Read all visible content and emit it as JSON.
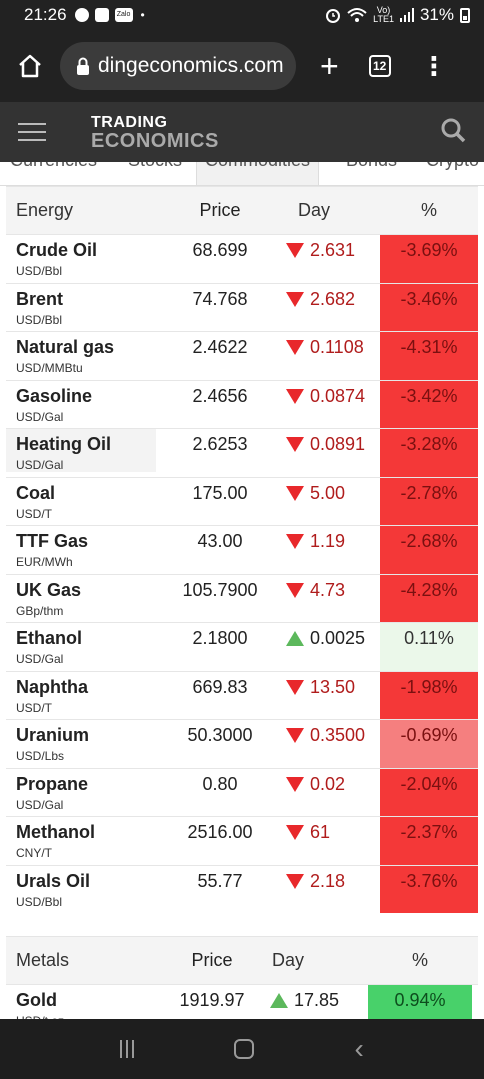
{
  "status_bar": {
    "time": "21:26",
    "app_icons": [
      "messenger-icon",
      "image-icon",
      "zalo-icon"
    ],
    "zalo_label": "Zalo",
    "dot": "•",
    "alarm_icon": "alarm-icon",
    "wifi_icon": "wifi-icon",
    "network_label_top": "Vo)",
    "network_label_bottom": "LTE1",
    "signal_icon": "signal-icon",
    "battery": "31%"
  },
  "browser": {
    "url": "dingeconomics.com",
    "tabs_count": "12",
    "plus_label": "+",
    "menu_label": "⋮"
  },
  "site": {
    "logo_line1": "TRADING",
    "logo_line2": "ECONOMICS"
  },
  "category_tabs": [
    {
      "label": "Currencies",
      "active": false
    },
    {
      "label": "Stocks",
      "active": false
    },
    {
      "label": "Commodities",
      "active": true
    },
    {
      "label": "Bonds",
      "active": false
    },
    {
      "label": "Crypto",
      "active": false
    }
  ],
  "energy_table": {
    "headers": {
      "name": "Energy",
      "price": "Price",
      "day": "Day",
      "pct": "%"
    },
    "rows": [
      {
        "name": "Crude Oil",
        "unit": "USD/Bbl",
        "price": "68.699",
        "dir": "down",
        "change": "2.631",
        "pct": "-3.69%",
        "pct_style": "red"
      },
      {
        "name": "Brent",
        "unit": "USD/Bbl",
        "price": "74.768",
        "dir": "down",
        "change": "2.682",
        "pct": "-3.46%",
        "pct_style": "red"
      },
      {
        "name": "Natural gas",
        "unit": "USD/MMBtu",
        "price": "2.4622",
        "dir": "down",
        "change": "0.1108",
        "pct": "-4.31%",
        "pct_style": "red"
      },
      {
        "name": "Gasoline",
        "unit": "USD/Gal",
        "price": "2.4656",
        "dir": "down",
        "change": "0.0874",
        "pct": "-3.42%",
        "pct_style": "red"
      },
      {
        "name": "Heating Oil",
        "unit": "USD/Gal",
        "price": "2.6253",
        "dir": "down",
        "change": "0.0891",
        "pct": "-3.28%",
        "pct_style": "red"
      },
      {
        "name": "Coal",
        "unit": "USD/T",
        "price": "175.00",
        "dir": "down",
        "change": "5.00",
        "pct": "-2.78%",
        "pct_style": "red"
      },
      {
        "name": "TTF Gas",
        "unit": "EUR/MWh",
        "price": "43.00",
        "dir": "down",
        "change": "1.19",
        "pct": "-2.68%",
        "pct_style": "red"
      },
      {
        "name": "UK Gas",
        "unit": "GBp/thm",
        "price": "105.7900",
        "dir": "down",
        "change": "4.73",
        "pct": "-4.28%",
        "pct_style": "red"
      },
      {
        "name": "Ethanol",
        "unit": "USD/Gal",
        "price": "2.1800",
        "dir": "up",
        "change": "0.0025",
        "pct": "0.11%",
        "pct_style": "lightgreen"
      },
      {
        "name": "Naphtha",
        "unit": "USD/T",
        "price": "669.83",
        "dir": "down",
        "change": "13.50",
        "pct": "-1.98%",
        "pct_style": "red"
      },
      {
        "name": "Uranium",
        "unit": "USD/Lbs",
        "price": "50.3000",
        "dir": "down",
        "change": "0.3500",
        "pct": "-0.69%",
        "pct_style": "lightred"
      },
      {
        "name": "Propane",
        "unit": "USD/Gal",
        "price": "0.80",
        "dir": "down",
        "change": "0.02",
        "pct": "-2.04%",
        "pct_style": "red"
      },
      {
        "name": "Methanol",
        "unit": "CNY/T",
        "price": "2516.00",
        "dir": "down",
        "change": "61",
        "pct": "-2.37%",
        "pct_style": "red"
      },
      {
        "name": "Urals Oil",
        "unit": "USD/Bbl",
        "price": "55.77",
        "dir": "down",
        "change": "2.18",
        "pct": "-3.76%",
        "pct_style": "red"
      }
    ]
  },
  "metals_table": {
    "headers": {
      "name": "Metals",
      "price": "Price",
      "day": "Day",
      "pct": "%"
    },
    "rows": [
      {
        "name": "Gold",
        "unit": "USD/t.oz",
        "price": "1919.97",
        "dir": "up",
        "change": "17.85",
        "pct": "0.94%",
        "pct_style": "green"
      }
    ]
  },
  "colors": {
    "down_red": "#e8282b",
    "up_green": "#5cb85c",
    "pct_red_bg": "#f43838",
    "pct_green_bg": "#48d16a"
  }
}
